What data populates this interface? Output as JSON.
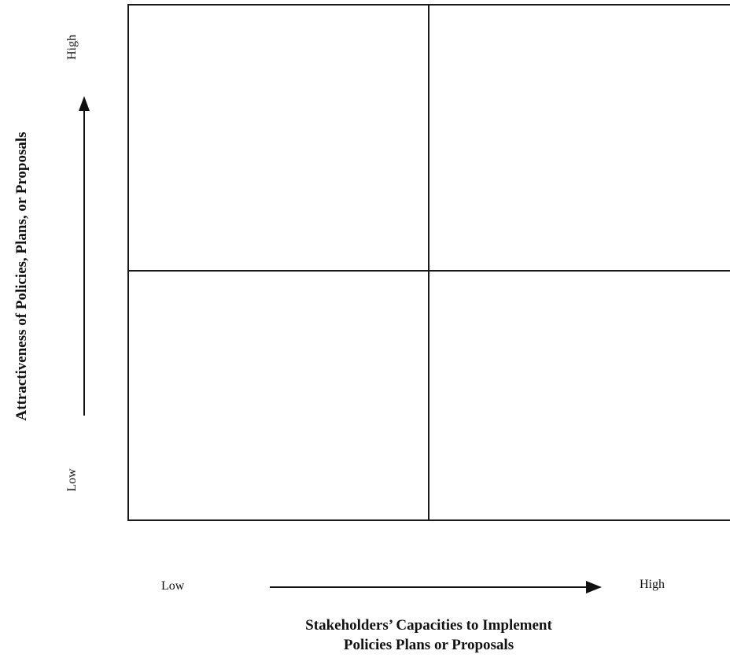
{
  "diagram": {
    "y_axis": {
      "title": "Attractiveness of Policies, Plans, or Proposals",
      "high_label": "High",
      "low_label": "Low"
    },
    "x_axis": {
      "title_line1": "Stakeholders’ Capacities to Implement",
      "title_line2": "Policies Plans or Proposals",
      "low_label": "Low",
      "high_label": "High"
    },
    "quadrants": [
      "top-left",
      "top-right",
      "bottom-left",
      "bottom-right"
    ],
    "line_color": "#1a1a1a"
  }
}
